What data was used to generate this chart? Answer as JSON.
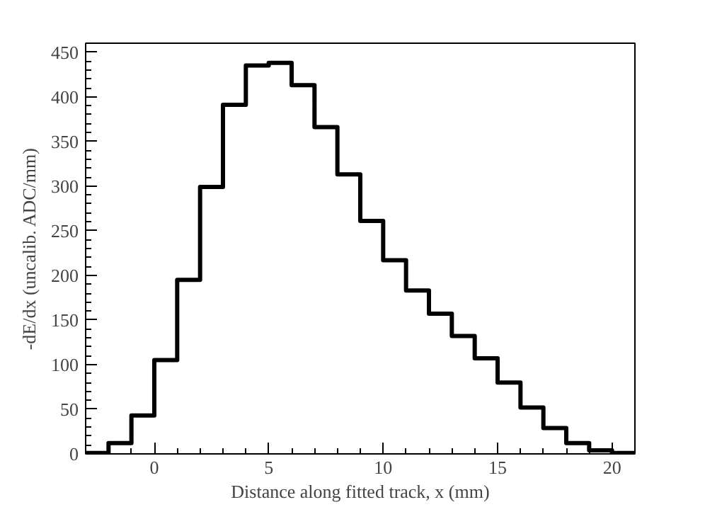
{
  "chart_data": {
    "type": "histogram",
    "xlabel": "Distance along fitted track, x (mm)",
    "ylabel": "-dE/dx (uncalib. ADC/mm)",
    "bins": [
      -3,
      -2,
      -1,
      0,
      1,
      2,
      3,
      4,
      5,
      6,
      7,
      8,
      9,
      10,
      11,
      12,
      13,
      14,
      15,
      16,
      17,
      18,
      19,
      20,
      21
    ],
    "values": [
      1,
      12,
      43,
      105,
      195,
      299,
      391,
      435,
      438,
      413,
      366,
      313,
      261,
      217,
      183,
      157,
      132,
      107,
      80,
      52,
      29,
      12,
      4,
      1
    ],
    "color": "#000000",
    "xlim": [
      -3,
      21
    ],
    "xticks": [
      0,
      5,
      10,
      15,
      20
    ],
    "ylim": [
      0,
      460
    ],
    "yticks": [
      0,
      50,
      100,
      150,
      200,
      250,
      300,
      350,
      400,
      450
    ],
    "grid": false
  }
}
